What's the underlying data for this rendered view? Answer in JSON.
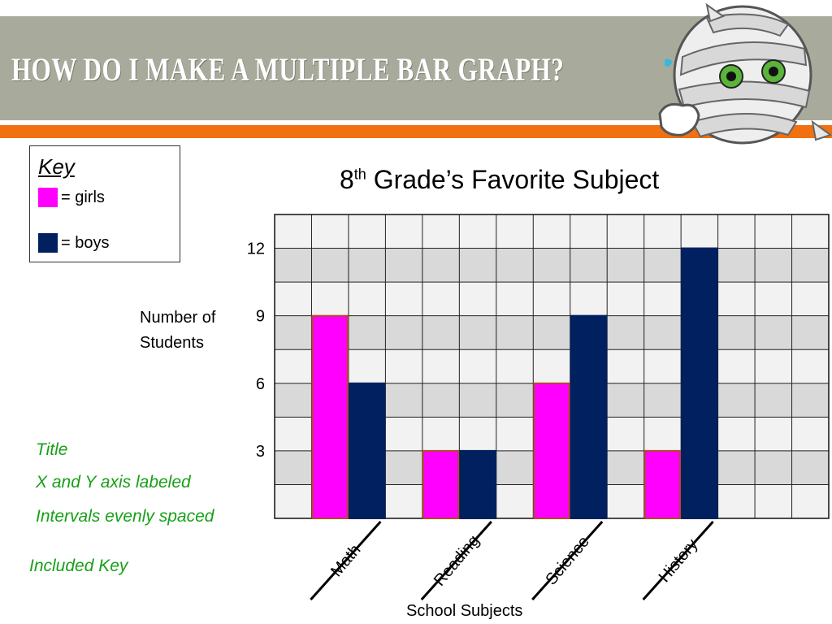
{
  "slide": {
    "title": "HOW DO I MAKE A MULTIPLE BAR GRAPH?"
  },
  "key": {
    "title": "Key",
    "items": [
      {
        "label": "= girls",
        "color": "#ff00ff"
      },
      {
        "label": "= boys",
        "color": "#002060"
      }
    ]
  },
  "notes": [
    "Title",
    "X and Y axis labeled",
    "Intervals evenly spaced",
    "Included Key"
  ],
  "colors": {
    "header": "#a8ab9c",
    "accent_orange": "#f07012",
    "girls": "#ff00ff",
    "boys": "#002060",
    "girls_border": "#b34a2a",
    "note_green": "#17a017"
  },
  "chart_data": {
    "type": "bar",
    "title_main": "8",
    "title_sup": "th",
    "title_rest": " Grade’s Favorite Subject",
    "xlabel": "School Subjects",
    "ylabel_lines": [
      "Number of",
      "Students"
    ],
    "categories": [
      "Math",
      "Reading",
      "Science",
      "History"
    ],
    "series": [
      {
        "name": "girls",
        "values": [
          9,
          3,
          6,
          3
        ]
      },
      {
        "name": "boys",
        "values": [
          6,
          3,
          9,
          12
        ]
      }
    ],
    "yticks": [
      3,
      6,
      9,
      12
    ],
    "ylim": [
      0,
      13.5
    ],
    "grid": true
  }
}
